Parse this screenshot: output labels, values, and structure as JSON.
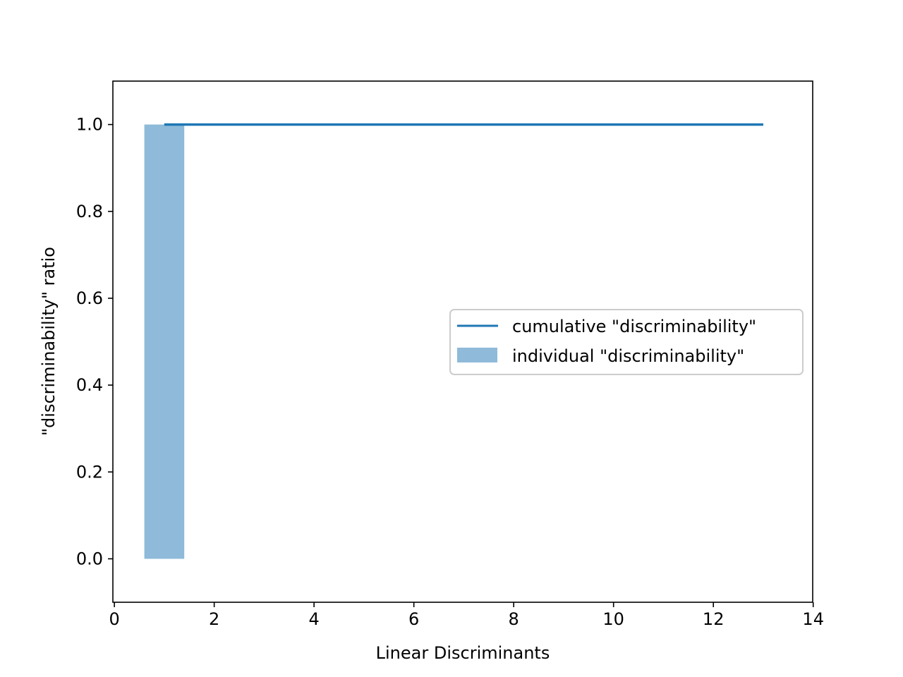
{
  "chart_data": {
    "type": "bar",
    "title": "",
    "xlabel": "Linear Discriminants",
    "ylabel": "\"discriminability\" ratio",
    "xlim": [
      -0.03,
      13.99
    ],
    "ylim": [
      -0.1,
      1.1
    ],
    "xticks": [
      0,
      2,
      4,
      6,
      8,
      10,
      12,
      14
    ],
    "yticks": [
      0.0,
      0.2,
      0.4,
      0.6,
      0.8,
      1.0
    ],
    "xtick_labels": [
      "0",
      "2",
      "4",
      "6",
      "8",
      "10",
      "12",
      "14"
    ],
    "ytick_labels": [
      "0.0",
      "0.2",
      "0.4",
      "0.6",
      "0.8",
      "1.0"
    ],
    "grid": false,
    "legend_position": "center-right",
    "bar_width": 0.8,
    "series": [
      {
        "name": "individual \"discriminability\"",
        "kind": "bar",
        "color": "#8fbad9",
        "x": [
          1,
          2,
          3,
          4,
          5,
          6,
          7,
          8,
          9,
          10,
          11,
          12,
          13
        ],
        "values": [
          1.0,
          0.0,
          0.0,
          0.0,
          0.0,
          0.0,
          0.0,
          0.0,
          0.0,
          0.0,
          0.0,
          0.0,
          0.0
        ]
      },
      {
        "name": "cumulative \"discriminability\"",
        "kind": "step",
        "color": "#1f77b4",
        "x": [
          1,
          2,
          3,
          4,
          5,
          6,
          7,
          8,
          9,
          10,
          11,
          12,
          13
        ],
        "values": [
          1.0,
          1.0,
          1.0,
          1.0,
          1.0,
          1.0,
          1.0,
          1.0,
          1.0,
          1.0,
          1.0,
          1.0,
          1.0
        ]
      }
    ],
    "legend": [
      {
        "label": "cumulative \"discriminability\"",
        "kind": "line",
        "color": "#1f77b4"
      },
      {
        "label": "individual \"discriminability\"",
        "kind": "patch",
        "color": "#8fbad9"
      }
    ]
  }
}
